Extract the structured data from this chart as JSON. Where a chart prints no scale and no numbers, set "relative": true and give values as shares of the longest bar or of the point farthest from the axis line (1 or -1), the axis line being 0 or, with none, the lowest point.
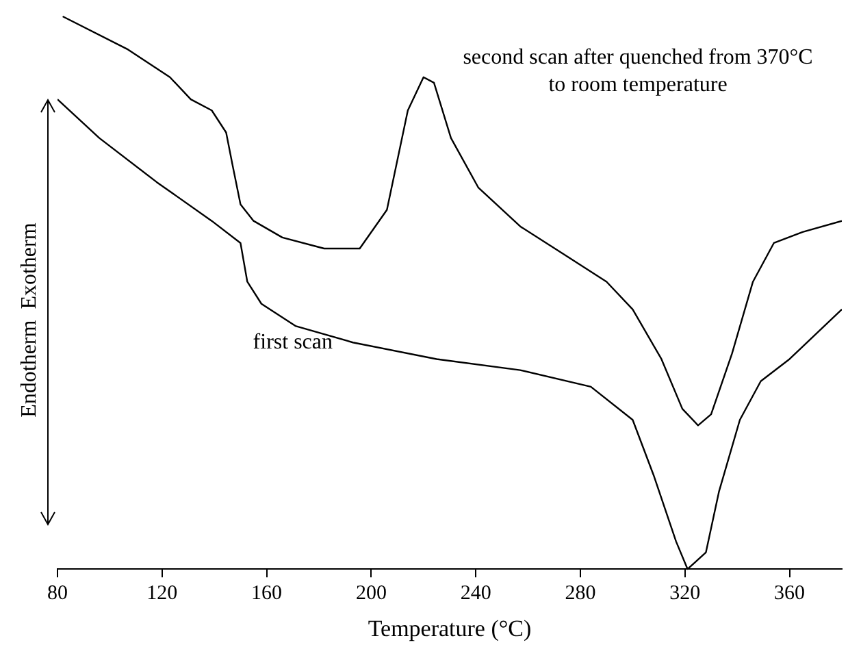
{
  "chart_data": {
    "type": "line",
    "relative": true,
    "xlabel": "Temperature (°C)",
    "ylabel": "Endotherm  Exotherm",
    "xlim": [
      80,
      380
    ],
    "xticks": [
      80,
      120,
      160,
      200,
      240,
      280,
      320,
      360
    ],
    "grid": false,
    "legend": false,
    "marker": "none",
    "line_style": "solid",
    "series": [
      {
        "color": "#000000",
        "x": [
          82,
          107,
          123,
          131,
          139,
          144.5,
          147,
          150,
          155,
          166,
          182,
          195.6,
          206,
          214,
          220,
          224,
          230.5,
          241,
          257,
          273.5,
          290,
          300,
          311,
          319,
          325,
          330,
          338,
          346,
          354,
          365,
          380
        ],
        "values": [
          1.0,
          0.94,
          0.89,
          0.85,
          0.83,
          0.79,
          0.73,
          0.66,
          0.63,
          0.6,
          0.58,
          0.58,
          0.65,
          0.83,
          0.89,
          0.88,
          0.78,
          0.69,
          0.62,
          0.57,
          0.52,
          0.47,
          0.38,
          0.29,
          0.26,
          0.28,
          0.39,
          0.52,
          0.59,
          0.61,
          0.63
        ]
      },
      {
        "color": "#000000",
        "x": [
          80,
          96,
          118,
          139,
          150,
          152.6,
          158,
          171,
          193,
          225,
          257,
          284,
          300,
          308,
          316.6,
          321,
          328,
          333,
          341,
          349,
          360,
          380
        ],
        "values": [
          0.85,
          0.78,
          0.7,
          0.63,
          0.59,
          0.52,
          0.48,
          0.44,
          0.41,
          0.38,
          0.36,
          0.33,
          0.27,
          0.17,
          0.05,
          0,
          0.03,
          0.14,
          0.27,
          0.34,
          0.38,
          0.47
        ]
      }
    ],
    "annotations": [
      "second scan after quenched from 370°C to room temperature",
      "first scan"
    ]
  }
}
